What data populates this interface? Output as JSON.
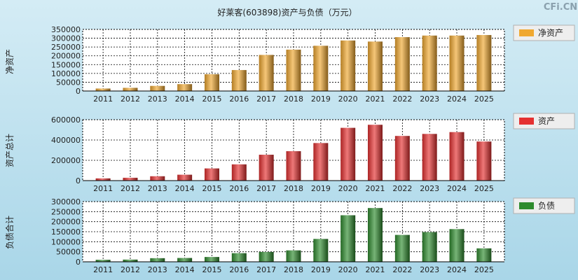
{
  "title": "好莱客(603898)资产与负债（万元）",
  "watermark": "CFi.CN",
  "colors": {
    "net": "#f0a830",
    "assets": "#e53030",
    "liab": "#2e8b2e"
  },
  "chart_data": [
    {
      "id": "net",
      "type": "bar",
      "ylabel": "净资产",
      "legend": "净资产",
      "categories": [
        "2011",
        "2012",
        "2013",
        "2014",
        "2015",
        "2016",
        "2017",
        "2018",
        "2019",
        "2020",
        "2021",
        "2022",
        "2023",
        "2024",
        "2025"
      ],
      "values": [
        14000,
        18000,
        29000,
        39000,
        95000,
        119000,
        205000,
        235000,
        257000,
        287000,
        281000,
        306000,
        315000,
        315000,
        318000
      ],
      "ylim": [
        0,
        350000
      ],
      "yticks": [
        "0",
        "50000",
        "100000",
        "150000",
        "200000",
        "250000",
        "300000",
        "350000"
      ]
    },
    {
      "id": "assets",
      "type": "bar",
      "ylabel": "资产总计",
      "legend": "资产",
      "categories": [
        "2011",
        "2012",
        "2013",
        "2014",
        "2015",
        "2016",
        "2017",
        "2018",
        "2019",
        "2020",
        "2021",
        "2022",
        "2023",
        "2024",
        "2025"
      ],
      "values": [
        22000,
        28000,
        43000,
        58000,
        120000,
        160000,
        255000,
        290000,
        370000,
        520000,
        550000,
        440000,
        460000,
        478000,
        385000
      ],
      "ylim": [
        0,
        600000
      ],
      "yticks": [
        "0",
        "200000",
        "400000",
        "600000"
      ]
    },
    {
      "id": "liab",
      "type": "bar",
      "ylabel": "负债合计",
      "legend": "负债",
      "categories": [
        "2011",
        "2012",
        "2013",
        "2014",
        "2015",
        "2016",
        "2017",
        "2018",
        "2019",
        "2020",
        "2021",
        "2022",
        "2023",
        "2024",
        "2025"
      ],
      "values": [
        10000,
        11000,
        18000,
        19000,
        24000,
        43000,
        49000,
        57000,
        114000,
        232000,
        268000,
        134000,
        148000,
        163000,
        67000
      ],
      "ylim": [
        0,
        300000
      ],
      "yticks": [
        "0",
        "50000",
        "100000",
        "150000",
        "200000",
        "250000",
        "300000"
      ]
    }
  ]
}
